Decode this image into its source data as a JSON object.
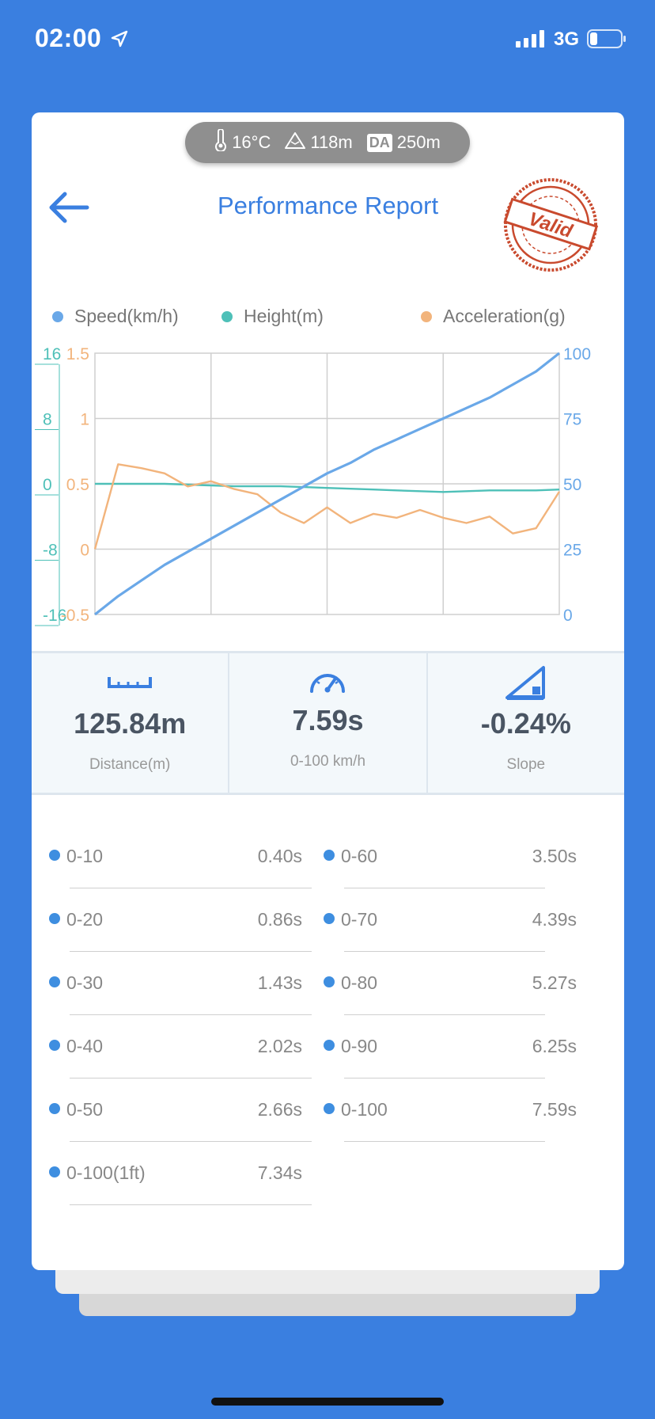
{
  "status_bar": {
    "time": "02:00",
    "network": "3G",
    "icons": [
      "location-arrow-icon",
      "signal-bars-icon",
      "battery-icon"
    ]
  },
  "environment": {
    "temperature": "16°C",
    "altitude": "118m",
    "density_altitude_tag": "DA",
    "density_altitude": "250m",
    "icons": [
      "thermometer-icon",
      "mountain-icon"
    ]
  },
  "header": {
    "title": "Performance Report",
    "stamp_text": "Valid"
  },
  "legend": {
    "speed": "Speed(km/h)",
    "height": "Height(m)",
    "acceleration": "Acceleration(g)"
  },
  "colors": {
    "accent": "#3A7FE0",
    "speed": "#6AA8E8",
    "height": "#4EC0B8",
    "acceleration": "#F2B47C",
    "stamp": "#C94A2E"
  },
  "chart_data": {
    "type": "line",
    "x": [
      0,
      0.5,
      1,
      1.5,
      2,
      2.5,
      3,
      3.5,
      4,
      4.5,
      5,
      5.5,
      6,
      6.5,
      7,
      7.5,
      8,
      8.5,
      9,
      9.5,
      10
    ],
    "grid": true,
    "left_axis_height": {
      "ticks": [
        "16",
        "8",
        "0",
        "-8",
        "-16"
      ],
      "ylim": [
        -16,
        16
      ]
    },
    "left_axis_acceleration": {
      "ticks": [
        "1.5",
        "1",
        "0.5",
        "0",
        "-0.5"
      ],
      "ylim": [
        -0.5,
        1.5
      ]
    },
    "right_axis_speed": {
      "ticks": [
        "100",
        "75",
        "50",
        "25",
        "0"
      ],
      "ylim": [
        0,
        100
      ]
    },
    "series": [
      {
        "name": "Speed(km/h)",
        "axis": "speed",
        "values": [
          0,
          7,
          13,
          19,
          24,
          29,
          34,
          39,
          44,
          49,
          54,
          58,
          63,
          67,
          71,
          75,
          79,
          83,
          88,
          93,
          100
        ]
      },
      {
        "name": "Height(m)",
        "axis": "height",
        "values": [
          0,
          0,
          0,
          0,
          -0.1,
          -0.2,
          -0.3,
          -0.3,
          -0.3,
          -0.4,
          -0.5,
          -0.6,
          -0.7,
          -0.8,
          -0.9,
          -1.0,
          -0.9,
          -0.8,
          -0.8,
          -0.8,
          -0.7
        ]
      },
      {
        "name": "Acceleration(g)",
        "axis": "acceleration",
        "values": [
          0,
          0.65,
          0.62,
          0.58,
          0.48,
          0.52,
          0.46,
          0.42,
          0.28,
          0.2,
          0.32,
          0.2,
          0.27,
          0.24,
          0.3,
          0.24,
          0.2,
          0.25,
          0.12,
          0.16,
          0.44
        ]
      }
    ]
  },
  "stats": {
    "distance": {
      "value": "125.84m",
      "label": "Distance(m)"
    },
    "time": {
      "value": "7.59s",
      "label": "0-100 km/h"
    },
    "slope": {
      "value": "-0.24%",
      "label": "Slope"
    }
  },
  "splits": [
    {
      "label": "0-10",
      "value": "0.40s"
    },
    {
      "label": "0-20",
      "value": "0.86s"
    },
    {
      "label": "0-30",
      "value": "1.43s"
    },
    {
      "label": "0-40",
      "value": "2.02s"
    },
    {
      "label": "0-50",
      "value": "2.66s"
    },
    {
      "label": "0-100(1ft)",
      "value": "7.34s"
    },
    {
      "label": "0-60",
      "value": "3.50s"
    },
    {
      "label": "0-70",
      "value": "4.39s"
    },
    {
      "label": "0-80",
      "value": "5.27s"
    },
    {
      "label": "0-90",
      "value": "6.25s"
    },
    {
      "label": "0-100",
      "value": "7.59s"
    }
  ]
}
